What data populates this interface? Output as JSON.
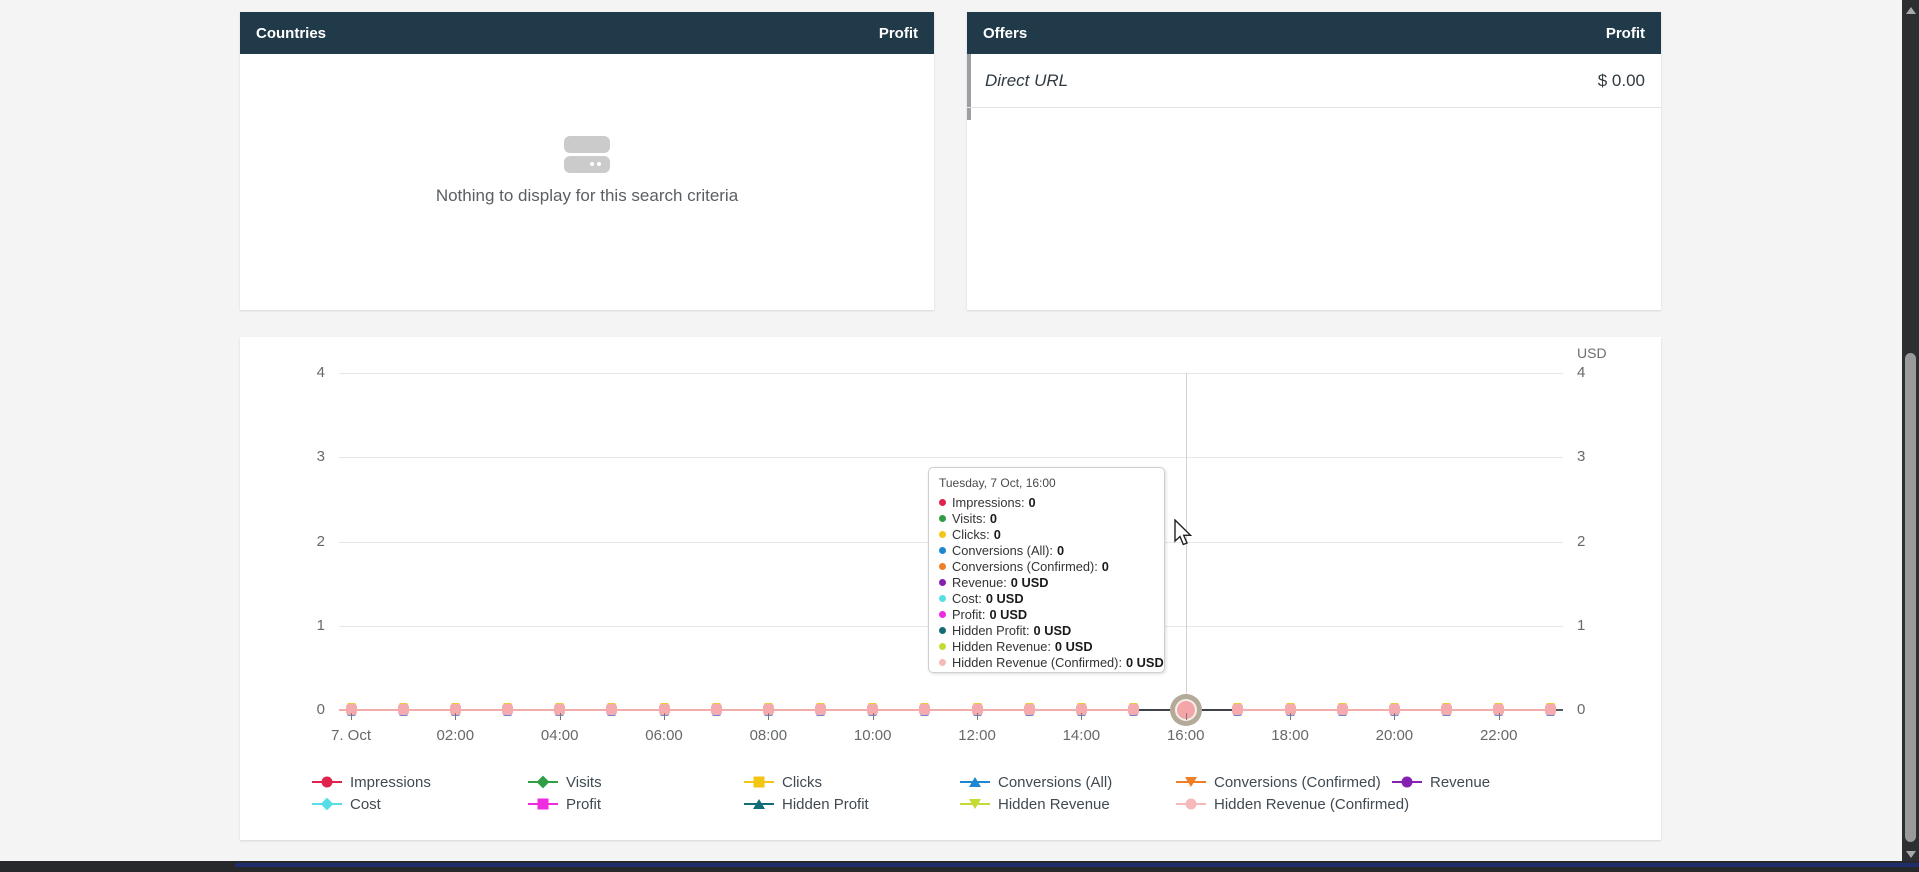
{
  "page": {
    "background": "#f4f4f5",
    "header_color": "#213a49"
  },
  "countries_panel": {
    "title": "Countries",
    "metric_header": "Profit",
    "empty_message": "Nothing to display for this search criteria"
  },
  "offers_panel": {
    "title": "Offers",
    "metric_header": "Profit",
    "rows": [
      {
        "name": "Direct URL",
        "value": "$ 0.00"
      }
    ]
  },
  "chart": {
    "unit_label": "USD",
    "y_ticks": [
      "4",
      "3",
      "2",
      "1",
      "0"
    ],
    "x_tick_labels": [
      "7. Oct",
      "02:00",
      "04:00",
      "06:00",
      "08:00",
      "10:00",
      "12:00",
      "14:00",
      "16:00",
      "18:00",
      "20:00",
      "22:00"
    ],
    "hover_index": 16,
    "tooltip": {
      "title": "Tuesday, 7 Oct, 16:00",
      "items": [
        {
          "label": "Impressions",
          "value": "0",
          "color": "#e0234e"
        },
        {
          "label": "Visits",
          "value": "0",
          "color": "#2f9e44"
        },
        {
          "label": "Clicks",
          "value": "0",
          "color": "#f3c515"
        },
        {
          "label": "Conversions (All)",
          "value": "0",
          "color": "#1f87d2"
        },
        {
          "label": "Conversions (Confirmed)",
          "value": "0",
          "color": "#ef7e26"
        },
        {
          "label": "Revenue",
          "value": "0 USD",
          "color": "#8520b0"
        },
        {
          "label": "Cost",
          "value": "0 USD",
          "color": "#57dde8"
        },
        {
          "label": "Profit",
          "value": "0 USD",
          "color": "#ef2adf"
        },
        {
          "label": "Hidden Profit",
          "value": "0 USD",
          "color": "#136d79"
        },
        {
          "label": "Hidden Revenue",
          "value": "0 USD",
          "color": "#c5da35"
        },
        {
          "label": "Hidden Revenue (Confirmed)",
          "value": "0 USD",
          "color": "#f4b9b8"
        }
      ]
    },
    "legend": [
      {
        "label": "Impressions",
        "color": "#e0234e",
        "marker": "circle"
      },
      {
        "label": "Visits",
        "color": "#2f9e44",
        "marker": "diamond"
      },
      {
        "label": "Clicks",
        "color": "#f3c515",
        "marker": "square"
      },
      {
        "label": "Conversions (All)",
        "color": "#1f87d2",
        "marker": "triangle-up"
      },
      {
        "label": "Conversions (Confirmed)",
        "color": "#ef7e26",
        "marker": "triangle-down"
      },
      {
        "label": "Revenue",
        "color": "#8520b0",
        "marker": "circle"
      },
      {
        "label": "Cost",
        "color": "#57dde8",
        "marker": "diamond"
      },
      {
        "label": "Profit",
        "color": "#ef2adf",
        "marker": "square"
      },
      {
        "label": "Hidden Profit",
        "color": "#136d79",
        "marker": "triangle-up"
      },
      {
        "label": "Hidden Revenue",
        "color": "#c5da35",
        "marker": "triangle-down"
      },
      {
        "label": "Hidden Revenue (Confirmed)",
        "color": "#f4b9b8",
        "marker": "circle"
      }
    ]
  },
  "chart_data": {
    "type": "line",
    "title": "",
    "unit": "USD",
    "date": "Tuesday, 7 Oct",
    "x": [
      "00:00",
      "01:00",
      "02:00",
      "03:00",
      "04:00",
      "05:00",
      "06:00",
      "07:00",
      "08:00",
      "09:00",
      "10:00",
      "11:00",
      "12:00",
      "13:00",
      "14:00",
      "15:00",
      "16:00",
      "17:00",
      "18:00",
      "19:00",
      "20:00",
      "21:00",
      "22:00",
      "23:00"
    ],
    "x_tick_labels": [
      "7. Oct",
      "02:00",
      "04:00",
      "06:00",
      "08:00",
      "10:00",
      "12:00",
      "14:00",
      "16:00",
      "18:00",
      "20:00",
      "22:00"
    ],
    "ylim": [
      0,
      4
    ],
    "y_ticks": [
      0,
      1,
      2,
      3,
      4
    ],
    "grid": true,
    "legend_position": "bottom",
    "hovered_point": {
      "x_label": "16:00",
      "date": "Tuesday, 7 Oct"
    },
    "series": [
      {
        "name": "Impressions",
        "color": "#e0234e",
        "marker": "circle",
        "values": [
          0,
          0,
          0,
          0,
          0,
          0,
          0,
          0,
          0,
          0,
          0,
          0,
          0,
          0,
          0,
          0,
          0,
          0,
          0,
          0,
          0,
          0,
          0,
          0
        ]
      },
      {
        "name": "Visits",
        "color": "#2f9e44",
        "marker": "diamond",
        "values": [
          0,
          0,
          0,
          0,
          0,
          0,
          0,
          0,
          0,
          0,
          0,
          0,
          0,
          0,
          0,
          0,
          0,
          0,
          0,
          0,
          0,
          0,
          0,
          0
        ]
      },
      {
        "name": "Clicks",
        "color": "#f3c515",
        "marker": "square",
        "values": [
          0,
          0,
          0,
          0,
          0,
          0,
          0,
          0,
          0,
          0,
          0,
          0,
          0,
          0,
          0,
          0,
          0,
          0,
          0,
          0,
          0,
          0,
          0,
          0
        ]
      },
      {
        "name": "Conversions (All)",
        "color": "#1f87d2",
        "marker": "triangle-up",
        "values": [
          0,
          0,
          0,
          0,
          0,
          0,
          0,
          0,
          0,
          0,
          0,
          0,
          0,
          0,
          0,
          0,
          0,
          0,
          0,
          0,
          0,
          0,
          0,
          0
        ]
      },
      {
        "name": "Conversions (Confirmed)",
        "color": "#ef7e26",
        "marker": "triangle-down",
        "values": [
          0,
          0,
          0,
          0,
          0,
          0,
          0,
          0,
          0,
          0,
          0,
          0,
          0,
          0,
          0,
          0,
          0,
          0,
          0,
          0,
          0,
          0,
          0,
          0
        ]
      },
      {
        "name": "Revenue",
        "color": "#8520b0",
        "marker": "circle",
        "values": [
          0,
          0,
          0,
          0,
          0,
          0,
          0,
          0,
          0,
          0,
          0,
          0,
          0,
          0,
          0,
          0,
          0,
          0,
          0,
          0,
          0,
          0,
          0,
          0
        ]
      },
      {
        "name": "Cost",
        "color": "#57dde8",
        "marker": "diamond",
        "values": [
          0,
          0,
          0,
          0,
          0,
          0,
          0,
          0,
          0,
          0,
          0,
          0,
          0,
          0,
          0,
          0,
          0,
          0,
          0,
          0,
          0,
          0,
          0,
          0
        ]
      },
      {
        "name": "Profit",
        "color": "#ef2adf",
        "marker": "square",
        "values": [
          0,
          0,
          0,
          0,
          0,
          0,
          0,
          0,
          0,
          0,
          0,
          0,
          0,
          0,
          0,
          0,
          0,
          0,
          0,
          0,
          0,
          0,
          0,
          0
        ]
      },
      {
        "name": "Hidden Profit",
        "color": "#136d79",
        "marker": "triangle-up",
        "values": [
          0,
          0,
          0,
          0,
          0,
          0,
          0,
          0,
          0,
          0,
          0,
          0,
          0,
          0,
          0,
          0,
          0,
          0,
          0,
          0,
          0,
          0,
          0,
          0
        ]
      },
      {
        "name": "Hidden Revenue",
        "color": "#c5da35",
        "marker": "triangle-down",
        "values": [
          0,
          0,
          0,
          0,
          0,
          0,
          0,
          0,
          0,
          0,
          0,
          0,
          0,
          0,
          0,
          0,
          0,
          0,
          0,
          0,
          0,
          0,
          0,
          0
        ]
      },
      {
        "name": "Hidden Revenue (Confirmed)",
        "color": "#f4b9b8",
        "marker": "circle",
        "values": [
          0,
          0,
          0,
          0,
          0,
          0,
          0,
          0,
          0,
          0,
          0,
          0,
          0,
          0,
          0,
          0,
          0,
          0,
          0,
          0,
          0,
          0,
          0,
          0
        ]
      }
    ]
  }
}
